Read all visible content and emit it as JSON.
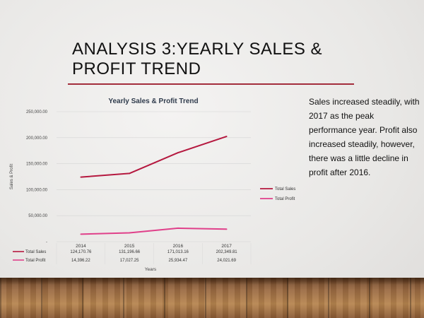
{
  "slide": {
    "title": "Analysis 3:Yearly Sales & Profit Trend",
    "body_text": "Sales increased steadily, with 2017 as the peak performance year. Profit also increased steadily, however, there was  a little decline in profit after 2016."
  },
  "colors": {
    "accent_rule": "#a32d3c",
    "total_sales": "#b5183f",
    "total_profit": "#e0408a"
  },
  "chart_data": {
    "type": "line",
    "title": "Yearly Sales & Profit Trend",
    "xlabel": "Years",
    "ylabel": "Sales & Profit",
    "categories": [
      "2014",
      "2015",
      "2016",
      "2017"
    ],
    "y_ticks": [
      "-",
      "50,000.00",
      "100,000.00",
      "150,000.00",
      "200,000.00",
      "250,000.00"
    ],
    "ylim": [
      0,
      250000
    ],
    "grid": true,
    "legend_position": "right",
    "series": [
      {
        "name": "Total Sales",
        "values": [
          124170.76,
          131196.66,
          171013.16,
          202349.81
        ],
        "labels": [
          "124,170.76",
          "131,196.66",
          "171,013.16",
          "202,349.81"
        ]
      },
      {
        "name": "Total Profit",
        "values": [
          14396.22,
          17027.25,
          25934.47,
          24021.69
        ],
        "labels": [
          "14,396.22",
          "17,027.25",
          "25,934.47",
          "24,021.69"
        ]
      }
    ]
  }
}
